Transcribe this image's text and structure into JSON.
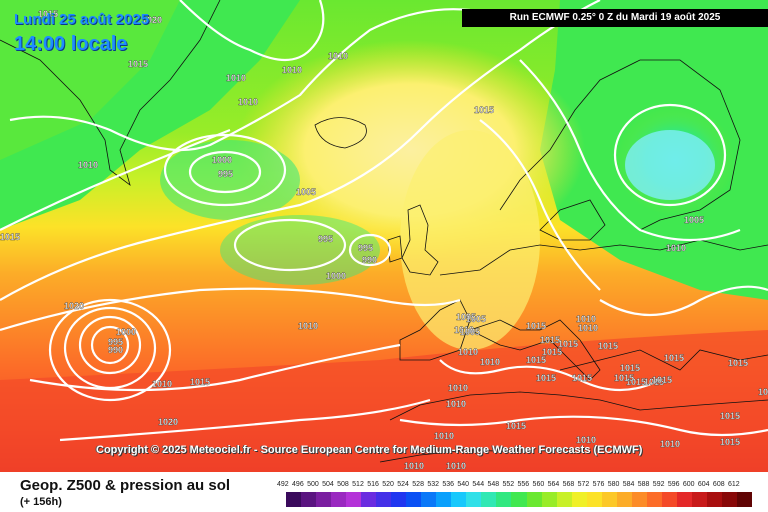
{
  "header": {
    "date_label": "Lundi 25 août 2025",
    "time_label": "14:00 locale",
    "run_label": "Run ECMWF 0.25° 0 Z du Mardi 19 août 2025"
  },
  "copyright": "Copyright © 2025 Meteociel.fr - Source European Centre for Medium-Range Weather Forecasts (ECMWF)",
  "legend": {
    "title": "Geop. Z500 & pression au sol",
    "subtitle": "(+ 156h)",
    "scale_values": [
      "492",
      "496",
      "500",
      "504",
      "508",
      "512",
      "516",
      "520",
      "524",
      "528",
      "532",
      "536",
      "540",
      "544",
      "548",
      "552",
      "556",
      "560",
      "564",
      "568",
      "572",
      "576",
      "580",
      "584",
      "588",
      "592",
      "596",
      "600",
      "604",
      "608",
      "612"
    ],
    "scale_colors": [
      "#3a0a5c",
      "#5a1480",
      "#7a1ea0",
      "#9a28c0",
      "#b432d8",
      "#6a2ce0",
      "#4430e8",
      "#2036f0",
      "#0a50f4",
      "#0a78f8",
      "#0aa0fc",
      "#18c8fc",
      "#30e0e8",
      "#30e8b4",
      "#30e880",
      "#40e850",
      "#6ae830",
      "#98ec28",
      "#c8f028",
      "#f0f028",
      "#fce228",
      "#fcc828",
      "#fcac28",
      "#fc8c28",
      "#fc6c28",
      "#f44a28",
      "#e42828",
      "#c81a1a",
      "#a80e0e",
      "#880808",
      "#600404"
    ]
  },
  "isobar_labels": [
    "1015",
    "1020",
    "1015",
    "1010",
    "1010",
    "1010",
    "1010",
    "1000",
    "995",
    "1010",
    "1005",
    "1015",
    "1005",
    "1010",
    "1015",
    "995",
    "995",
    "990",
    "1000",
    "1020",
    "1010",
    "1000",
    "995",
    "990",
    "1005",
    "1010",
    "1015",
    "1005",
    "1005",
    "1010",
    "1010",
    "1015",
    "1015",
    "1015",
    "1015",
    "1015",
    "1015",
    "1015",
    "1015",
    "1015",
    "1015",
    "1010",
    "1010",
    "1010",
    "1015",
    "1015",
    "1015",
    "1015",
    "1015",
    "1015",
    "1010",
    "1010",
    "1010",
    "1010",
    "1010",
    "1020",
    "1010",
    "1015",
    "1015",
    "1010",
    "1015"
  ]
}
